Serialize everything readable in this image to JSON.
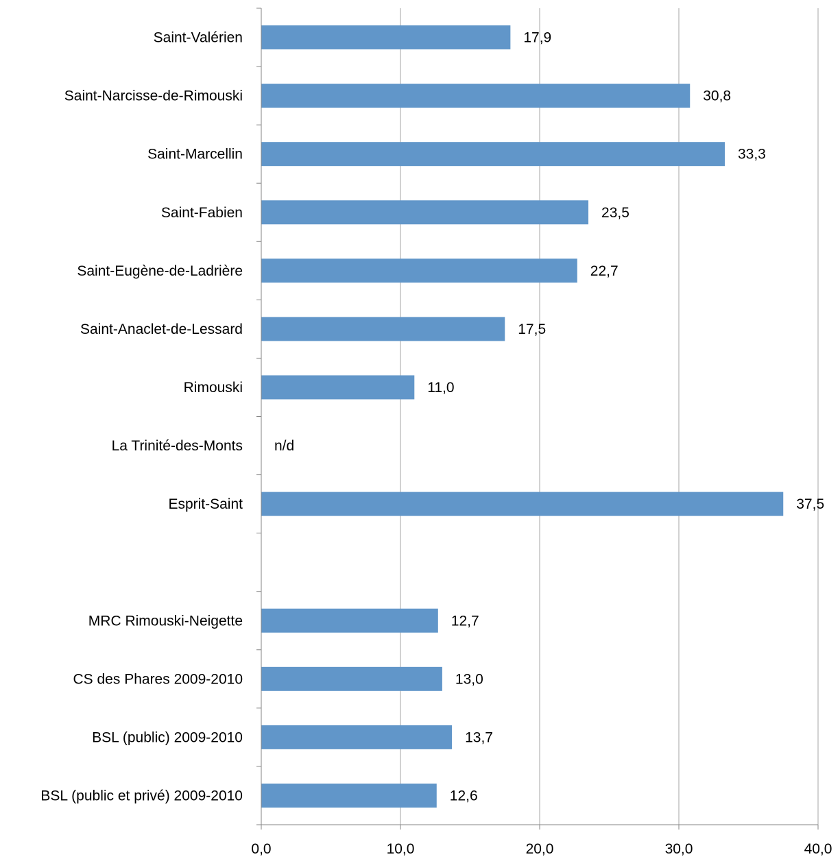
{
  "chart_data": {
    "type": "bar",
    "orientation": "horizontal",
    "categories": [
      "Saint-Valérien",
      "Saint-Narcisse-de-Rimouski",
      "Saint-Marcellin",
      "Saint-Fabien",
      "Saint-Eugène-de-Ladrière",
      "Saint-Anaclet-de-Lessard",
      "Rimouski",
      "La Trinité-des-Monts",
      "Esprit-Saint",
      "",
      "MRC Rimouski-Neigette",
      "CS des Phares 2009-2010",
      "BSL (public)  2009-2010",
      "BSL (public et privé)  2009-2010"
    ],
    "values": [
      17.9,
      30.8,
      33.3,
      23.5,
      22.7,
      17.5,
      11.0,
      null,
      37.5,
      null,
      12.7,
      13.0,
      13.7,
      12.6
    ],
    "data_labels": [
      "17,9",
      "30,8",
      "33,3",
      "23,5",
      "22,7",
      "17,5",
      "11,0",
      "n/d",
      "37,5",
      "",
      "12,7",
      "13,0",
      "13,7",
      "12,6"
    ],
    "xlim": [
      0,
      40
    ],
    "x_ticks": [
      "0,0",
      "10,0",
      "20,0",
      "30,0",
      "40,0"
    ],
    "x_tick_values": [
      0,
      10,
      20,
      30,
      40
    ],
    "title": "",
    "xlabel": "",
    "ylabel": "",
    "grid": "vertical",
    "legend": "none",
    "bar_color": "#6196c9",
    "grid_color": "#a6a6a6"
  }
}
